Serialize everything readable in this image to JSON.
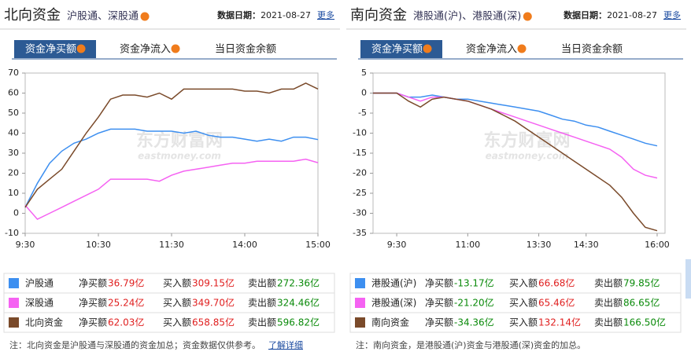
{
  "panels": [
    {
      "title": "北向资金",
      "subtitle": "沪股通、深股通",
      "date_label": "数据日期：",
      "date": "2021-08-27",
      "more": "更多",
      "tabs": [
        "资金净买额",
        "资金净流入",
        "当日资金余额"
      ],
      "table": {
        "rows": [
          [
            "净买额",
            "36.79亿",
            "买入额",
            "309.15亿",
            "卖出额",
            "272.36亿"
          ],
          [
            "净买额",
            "25.24亿",
            "买入额",
            "349.70亿",
            "卖出额",
            "324.46亿"
          ],
          [
            "净买额",
            "62.03亿",
            "买入额",
            "658.85亿",
            "卖出额",
            "596.82亿"
          ]
        ]
      },
      "note": "注：北向资金是沪股通与深股通的资金加总；资金数据仅供参考。",
      "note_link": "了解详细"
    },
    {
      "title": "南向资金",
      "subtitle": "港股通(沪)、港股通(深)",
      "date_label": "数据日期：",
      "date": "2021-08-27",
      "more": "更多",
      "tabs": [
        "资金净买额",
        "资金净流入",
        "当日资金余额"
      ],
      "table": {
        "rows": [
          [
            "净买额",
            "-13.17亿",
            "买入额",
            "66.68亿",
            "卖出额",
            "79.85亿"
          ],
          [
            "净买额",
            "-21.20亿",
            "买入额",
            "65.46亿",
            "卖出额",
            "86.65亿"
          ],
          [
            "净买额",
            "-34.36亿",
            "买入额",
            "132.14亿",
            "卖出额",
            "166.50亿"
          ]
        ]
      },
      "note": "注：南向资金，是港股通(沪)资金与港股通(深)资金的加总。"
    }
  ],
  "chart_data": [
    {
      "type": "line",
      "watermark": [
        "东方财富网",
        "eastmoney.com"
      ],
      "x": [
        0,
        10,
        20,
        30,
        40,
        50,
        60,
        70,
        80,
        90,
        100,
        110,
        120,
        130,
        140,
        150,
        160,
        170,
        180,
        190,
        200,
        210,
        220,
        230,
        240
      ],
      "xlim": [
        0,
        240
      ],
      "xticks": [
        {
          "value": 0,
          "label": "9:30"
        },
        {
          "value": 60,
          "label": "10:30"
        },
        {
          "value": 120,
          "label": "11:30"
        },
        {
          "value": 180,
          "label": "14:00"
        },
        {
          "value": 240,
          "label": "15:00"
        }
      ],
      "ylim": [
        -10,
        70
      ],
      "yticks": [
        -10,
        0,
        10,
        20,
        30,
        40,
        50,
        60,
        70
      ],
      "grid": false,
      "series": [
        {
          "name": "沪股通",
          "color": "#3d8ff0",
          "values": [
            3,
            15,
            25,
            31,
            35,
            37,
            40,
            42,
            42,
            42,
            41,
            41,
            41,
            40,
            41,
            39,
            38,
            38,
            37,
            36,
            37,
            36,
            38,
            38,
            36.79
          ]
        },
        {
          "name": "深股通",
          "color": "#f562f2",
          "values": [
            4,
            -3,
            0,
            3,
            6,
            9,
            12,
            17,
            17,
            17,
            17,
            16,
            19,
            21,
            22,
            23,
            24,
            25,
            25,
            26,
            26,
            26,
            26,
            27,
            25.24
          ]
        },
        {
          "name": "北向资金",
          "color": "#7a4a2a",
          "values": [
            3,
            12,
            17,
            22,
            31,
            40,
            48,
            57,
            59,
            59,
            58,
            60,
            57,
            62,
            62,
            62,
            62,
            62,
            61,
            61,
            60,
            62,
            62,
            65,
            62.03
          ]
        }
      ]
    },
    {
      "type": "line",
      "watermark": [
        "东方财富网",
        "eastmoney.com"
      ],
      "x": [
        0,
        15,
        30,
        45,
        60,
        75,
        90,
        105,
        120,
        135,
        150,
        165,
        180,
        195,
        210,
        225,
        240,
        255,
        270,
        285,
        300,
        315,
        330,
        345,
        360
      ],
      "xlim": [
        0,
        370
      ],
      "xticks": [
        {
          "value": 30,
          "label": "9:30"
        },
        {
          "value": 120,
          "label": "11:00"
        },
        {
          "value": 210,
          "label": "13:30"
        },
        {
          "value": 270,
          "label": "14:30"
        },
        {
          "value": 360,
          "label": "16:00"
        }
      ],
      "ylim": [
        -35,
        5
      ],
      "yticks": [
        -35,
        -30,
        -25,
        -20,
        -15,
        -10,
        -5,
        0,
        5
      ],
      "grid": false,
      "series": [
        {
          "name": "港股通(沪)",
          "color": "#3d8ff0",
          "values": [
            0,
            0,
            0,
            -1,
            -1,
            -0.5,
            -1,
            -1.5,
            -1.5,
            -2,
            -2.5,
            -3,
            -3.5,
            -4,
            -4.5,
            -5.5,
            -6.5,
            -7,
            -8,
            -8.5,
            -9.5,
            -10.5,
            -11.5,
            -12.5,
            -13.17
          ]
        },
        {
          "name": "港股通(深)",
          "color": "#f562f2",
          "values": [
            0,
            0,
            0,
            -1,
            -2,
            -1,
            -1,
            -1.5,
            -2,
            -3,
            -4,
            -5,
            -6,
            -7,
            -8,
            -9,
            -10,
            -11,
            -12,
            -13,
            -14,
            -16,
            -19,
            -20.5,
            -21.2
          ]
        },
        {
          "name": "南向资金",
          "color": "#7a4a2a",
          "values": [
            0,
            0,
            0,
            -2,
            -3.5,
            -1.5,
            -1,
            -1.5,
            -2,
            -3,
            -4,
            -5.5,
            -7,
            -9,
            -11,
            -13,
            -15,
            -17,
            -19,
            -21,
            -23,
            -26,
            -30,
            -33.5,
            -34.36
          ]
        }
      ]
    }
  ]
}
